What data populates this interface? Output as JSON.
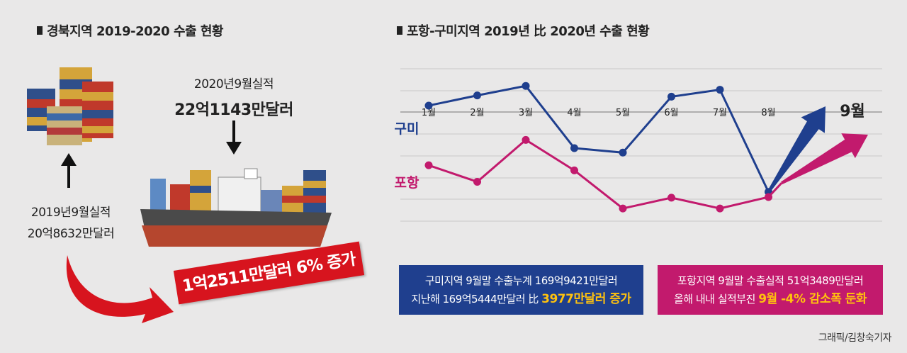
{
  "left": {
    "title": "경북지역 2019-2020 수출 현황",
    "caption_2020_line1": "2020년9월실적",
    "caption_2020_line2": "22억1143만달러",
    "caption_2019_line1": "2019년9월실적",
    "caption_2019_line2": "20억8632만달러",
    "increase_banner": "1억2511만달러 6% 증가"
  },
  "right": {
    "title": "포항-구미지역 2019년 比 2020년 수출 현황",
    "gumi_box_line1": "구미지역 9월말 수출누계 169억9421만달러",
    "gumi_box_line2_prefix": "지난해 169억5444만달러 比",
    "gumi_box_line2_highlight": "3977만달러 증가",
    "pohang_box_line1": "포항지역 9월말 수출실적 51억3489만달러",
    "pohang_box_line2_prefix": "올해 내내 실적부진",
    "pohang_box_line2_highlight": "9월 -4% 감소폭 둔화"
  },
  "credit": "그래픽/김창숙기자",
  "chart_data": {
    "type": "line",
    "categories": [
      "1월",
      "2월",
      "3월",
      "4월",
      "5월",
      "6월",
      "7월",
      "8월",
      "9월"
    ],
    "series": [
      {
        "name": "구미",
        "color": "#1f3f8e",
        "values": [
          8.2,
          9.8,
          11.3,
          1.5,
          0.8,
          9.6,
          10.7,
          -5.4,
          null
        ],
        "trend_to_last": "up"
      },
      {
        "name": "포항",
        "color": "#c21a6d",
        "values": [
          -1.2,
          -3.8,
          2.8,
          -2.0,
          -8.0,
          -6.3,
          -8.0,
          -6.2,
          -4.0
        ],
        "trend_to_last": "up"
      }
    ],
    "ylim": [
      -10,
      14
    ],
    "y_baseline": 0,
    "ticks_shown": false,
    "grid": true,
    "xlabel": "",
    "ylabel": ""
  },
  "colors": {
    "gumi": "#1f3f8e",
    "pohang": "#c21a6d",
    "banner": "#d7141e",
    "highlight": "#ffc20e"
  }
}
